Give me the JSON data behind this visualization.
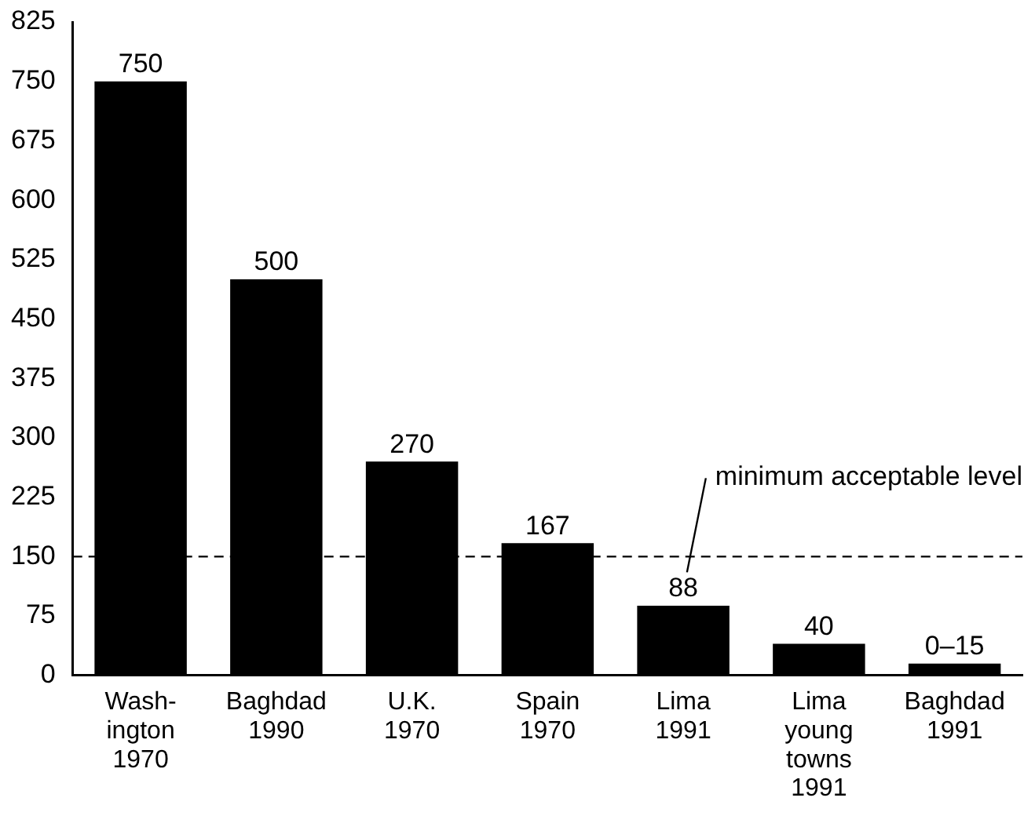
{
  "chart_data": {
    "type": "bar",
    "categories": [
      "Wash-\nington\n1970",
      "Baghdad\n1990",
      "U.K.\n1970",
      "Spain\n1970",
      "Lima\n1991",
      "Lima\nyoung\ntowns\n1991",
      "Baghdad\n1991"
    ],
    "values": [
      750,
      500,
      270,
      167,
      88,
      40,
      15
    ],
    "value_labels": [
      "750",
      "500",
      "270",
      "167",
      "88",
      "40",
      "0–15"
    ],
    "color": "#000000",
    "ylim": [
      0,
      825
    ],
    "yticks": [
      0,
      75,
      150,
      225,
      300,
      375,
      450,
      525,
      600,
      675,
      750,
      825
    ],
    "grid": false,
    "legend": false,
    "ref_lines": [
      {
        "axis": "y",
        "value": 150,
        "label": "minimum acceptable level",
        "color": "#000000",
        "line_style": "dashed"
      }
    ]
  }
}
